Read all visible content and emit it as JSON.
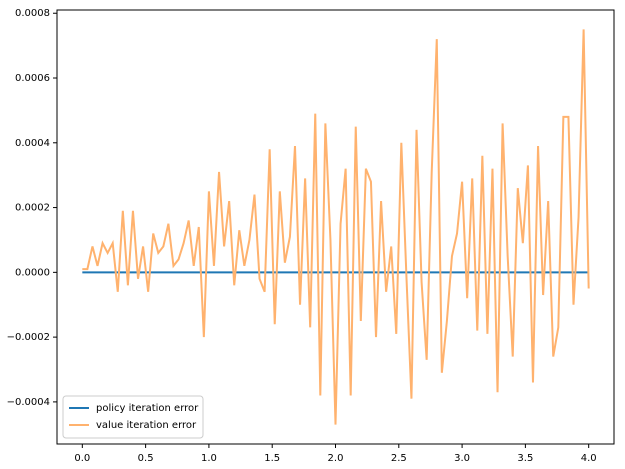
{
  "chart_data": {
    "type": "line",
    "x": [
      0,
      0.04,
      0.08,
      0.12,
      0.16,
      0.2,
      0.24,
      0.28,
      0.32,
      0.36,
      0.4,
      0.44,
      0.48,
      0.52,
      0.56,
      0.6,
      0.64,
      0.68,
      0.72,
      0.76,
      0.8,
      0.84,
      0.88,
      0.92,
      0.96,
      1.0,
      1.04,
      1.08,
      1.12,
      1.16,
      1.2,
      1.24,
      1.28,
      1.32,
      1.36,
      1.4,
      1.44,
      1.48,
      1.52,
      1.56,
      1.6,
      1.64,
      1.68,
      1.72,
      1.76,
      1.8,
      1.84,
      1.88,
      1.92,
      1.96,
      2.0,
      2.04,
      2.08,
      2.12,
      2.16,
      2.2,
      2.24,
      2.28,
      2.32,
      2.36,
      2.4,
      2.44,
      2.48,
      2.52,
      2.56,
      2.6,
      2.64,
      2.68,
      2.72,
      2.76,
      2.8,
      2.84,
      2.88,
      2.92,
      2.96,
      3.0,
      3.04,
      3.08,
      3.12,
      3.16,
      3.2,
      3.24,
      3.28,
      3.32,
      3.36,
      3.4,
      3.44,
      3.48,
      3.52,
      3.56,
      3.6,
      3.64,
      3.68,
      3.72,
      3.76,
      3.8,
      3.84,
      3.88,
      3.92,
      3.96,
      4.0
    ],
    "series": [
      {
        "name": "policy iteration error",
        "color": "#1f77b4",
        "values": [
          0,
          0,
          0,
          0,
          0,
          0,
          0,
          0,
          0,
          0,
          0,
          0,
          0,
          0,
          0,
          0,
          0,
          0,
          0,
          0,
          0,
          0,
          0,
          0,
          0,
          0,
          0,
          0,
          0,
          0,
          0,
          0,
          0,
          0,
          0,
          0,
          0,
          0,
          0,
          0,
          0,
          0,
          0,
          0,
          0,
          0,
          0,
          0,
          0,
          0,
          0,
          0,
          0,
          0,
          0,
          0,
          0,
          0,
          0,
          0,
          0,
          0,
          0,
          0,
          0,
          0,
          0,
          0,
          0,
          0,
          0,
          0,
          0,
          0,
          0,
          0,
          0,
          0,
          0,
          0,
          0,
          0,
          0,
          0,
          0,
          0,
          0,
          0,
          0,
          0,
          0,
          0,
          0,
          0,
          0,
          0,
          0,
          0,
          0,
          0,
          0
        ]
      },
      {
        "name": "value iteration error",
        "color": "#ffb26e",
        "values": [
          1e-05,
          1e-05,
          8e-05,
          2e-05,
          9e-05,
          6e-05,
          9e-05,
          -6e-05,
          0.00019,
          -4e-05,
          0.00019,
          -2e-05,
          8e-05,
          -6e-05,
          0.00012,
          6e-05,
          8e-05,
          0.00015,
          2e-05,
          4e-05,
          9e-05,
          0.00016,
          2e-05,
          0.00014,
          -0.0002,
          0.00025,
          2e-05,
          0.00031,
          8e-05,
          0.00022,
          -4e-05,
          0.00013,
          2e-05,
          0.0001,
          0.00024,
          -2e-05,
          -6e-05,
          0.00038,
          -0.00016,
          0.00025,
          3e-05,
          0.00011,
          0.00039,
          -0.0001,
          0.00029,
          -0.00017,
          0.00049,
          -0.00038,
          0.00046,
          0.0001,
          -0.00047,
          0.00015,
          0.00032,
          -0.00038,
          0.00045,
          -0.00015,
          0.00032,
          0.00028,
          -0.0002,
          0.00022,
          -6e-05,
          8e-05,
          -0.00019,
          0.0004,
          -1e-05,
          -0.00039,
          0.00044,
          -3e-05,
          -0.00027,
          0.00031,
          0.00072,
          -0.00031,
          -0.00015,
          5e-05,
          0.00012,
          0.00028,
          -8e-05,
          0.00029,
          -0.00018,
          0.00036,
          -0.00019,
          0.00032,
          -0.00037,
          0.00046,
          5e-05,
          -0.00026,
          0.00026,
          9e-05,
          0.00033,
          -0.00034,
          0.00039,
          -7e-05,
          0.00022,
          -0.00026,
          -0.00017,
          0.00048,
          0.00048,
          -0.0001,
          0.00017,
          0.00075,
          -5e-05
        ]
      }
    ],
    "xlim": [
      -0.2,
      4.2
    ],
    "ylim": [
      -0.00053,
      0.00081
    ],
    "xticks": [
      {
        "value": 0,
        "label": "0.0"
      },
      {
        "value": 0.5,
        "label": "0.5"
      },
      {
        "value": 1,
        "label": "1.0"
      },
      {
        "value": 1.5,
        "label": "1.5"
      },
      {
        "value": 2,
        "label": "2.0"
      },
      {
        "value": 2.5,
        "label": "2.5"
      },
      {
        "value": 3,
        "label": "3.0"
      },
      {
        "value": 3.5,
        "label": "3.5"
      },
      {
        "value": 4,
        "label": "4.0"
      }
    ],
    "yticks": [
      {
        "value": -0.0004,
        "label": "−0.0004"
      },
      {
        "value": -0.0002,
        "label": "−0.0002"
      },
      {
        "value": 0,
        "label": "0.0000"
      },
      {
        "value": 0.0002,
        "label": "0.0002"
      },
      {
        "value": 0.0004,
        "label": "0.0004"
      },
      {
        "value": 0.0006,
        "label": "0.0006"
      },
      {
        "value": 0.0008,
        "label": "0.0008"
      }
    ],
    "legend": "lower left"
  }
}
